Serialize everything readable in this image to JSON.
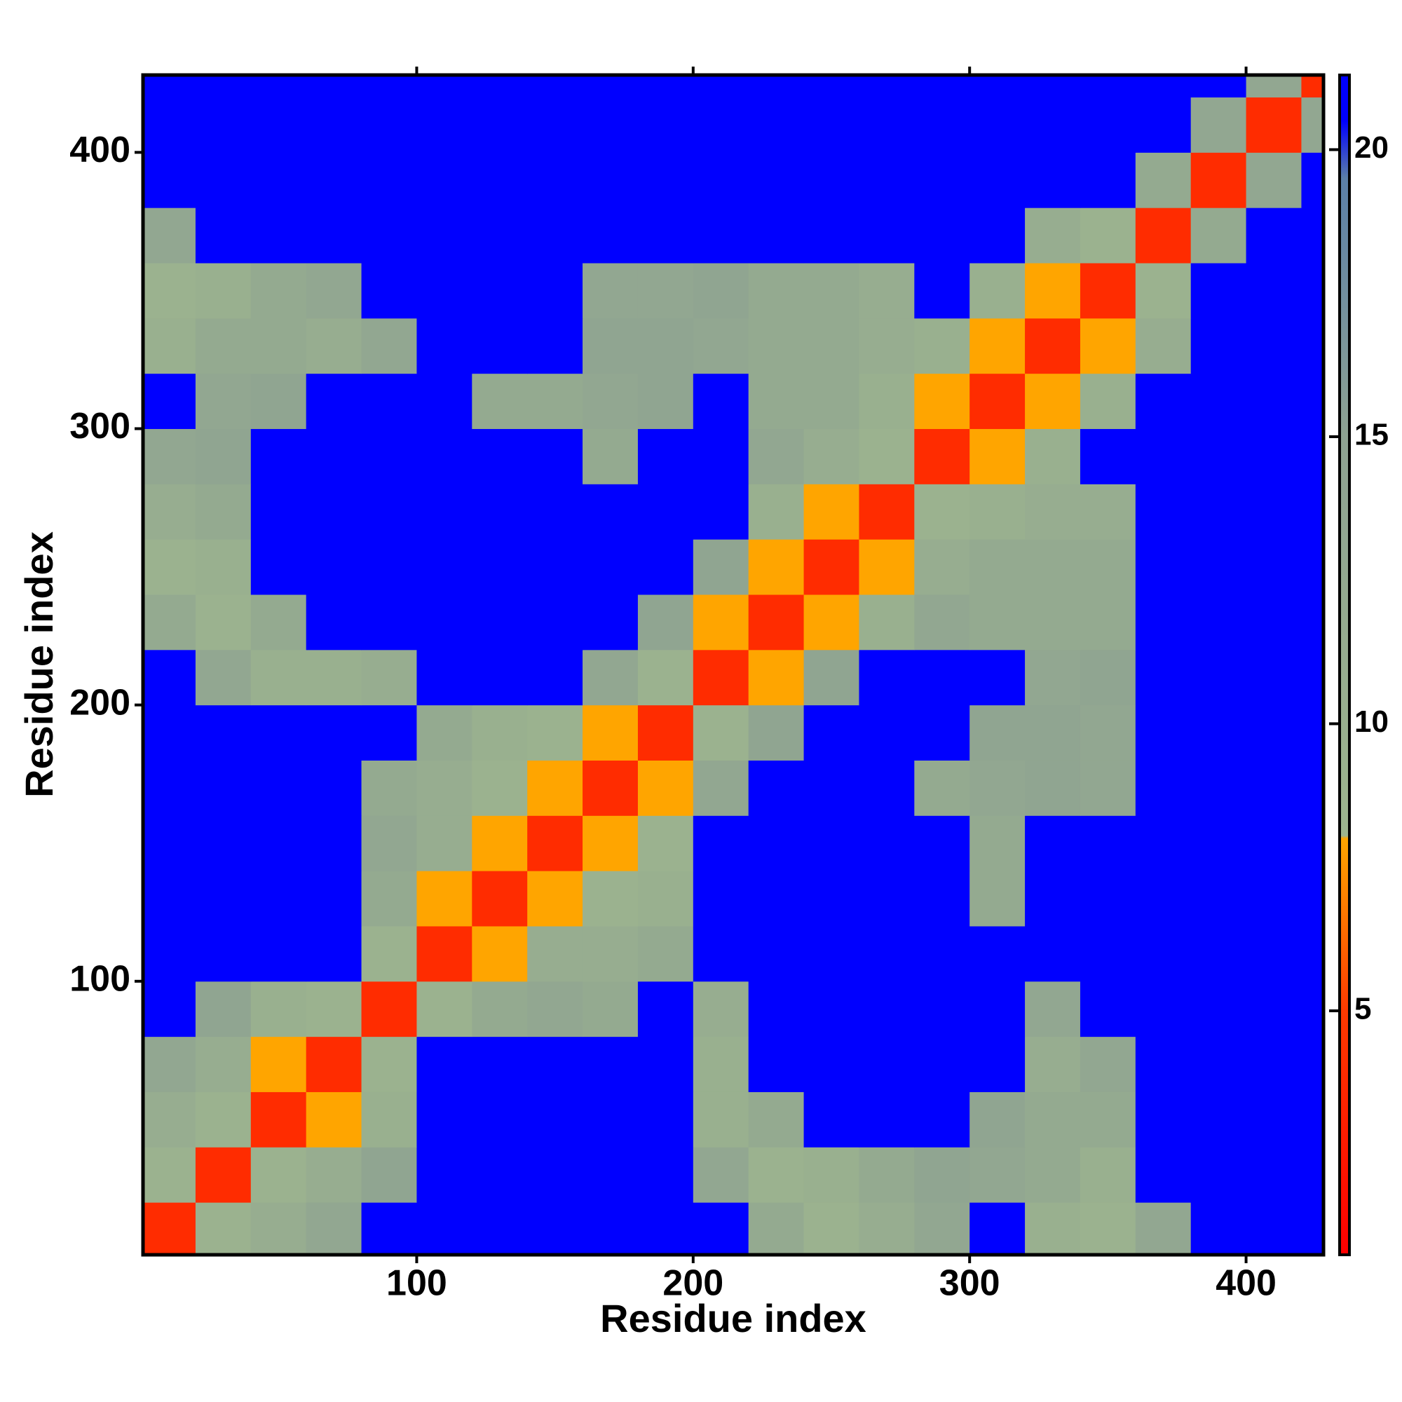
{
  "chart_data": {
    "type": "heatmap",
    "xlabel": "Residue index",
    "ylabel": "Residue index",
    "xlim": [
      1,
      428
    ],
    "ylim": [
      1,
      428
    ],
    "xticks": [
      100,
      200,
      300,
      400
    ],
    "yticks": [
      100,
      200,
      300,
      400
    ],
    "x_bins": [
      0,
      20,
      40,
      60,
      80,
      100,
      120,
      140,
      160,
      180,
      200,
      220,
      240,
      260,
      280,
      300,
      320,
      340,
      360,
      380,
      400,
      420,
      440
    ],
    "y_bins": [
      0,
      20,
      40,
      60,
      80,
      100,
      120,
      140,
      160,
      180,
      200,
      220,
      240,
      260,
      280,
      300,
      320,
      340,
      360,
      380,
      400,
      420,
      440
    ],
    "z": [
      [
        4,
        9,
        11,
        13,
        21,
        21,
        21,
        21,
        21,
        21,
        21,
        12,
        9,
        11,
        13,
        21,
        10,
        9,
        13,
        21,
        21,
        21
      ],
      [
        9,
        4,
        9,
        11,
        14,
        21,
        21,
        21,
        21,
        21,
        13,
        9,
        10,
        12,
        14,
        13,
        12,
        10,
        21,
        21,
        21,
        21
      ],
      [
        11,
        9,
        4,
        8,
        10,
        21,
        21,
        21,
        21,
        21,
        10,
        12,
        21,
        21,
        21,
        14,
        12,
        12,
        21,
        21,
        21,
        21
      ],
      [
        13,
        11,
        8,
        4,
        9,
        21,
        21,
        21,
        21,
        21,
        10,
        21,
        21,
        21,
        21,
        21,
        11,
        13,
        21,
        21,
        21,
        21
      ],
      [
        21,
        14,
        10,
        9,
        4,
        9,
        12,
        13,
        12,
        21,
        11,
        21,
        21,
        21,
        21,
        21,
        13,
        21,
        21,
        21,
        21,
        21
      ],
      [
        21,
        21,
        21,
        21,
        9,
        4,
        8,
        11,
        11,
        12,
        21,
        21,
        21,
        21,
        21,
        21,
        21,
        21,
        21,
        21,
        21,
        21
      ],
      [
        21,
        21,
        21,
        21,
        12,
        8,
        4,
        8,
        9,
        10,
        21,
        21,
        21,
        21,
        21,
        12,
        21,
        21,
        21,
        21,
        21,
        21
      ],
      [
        21,
        21,
        21,
        21,
        13,
        11,
        8,
        4,
        8,
        9,
        21,
        21,
        21,
        21,
        21,
        12,
        21,
        21,
        21,
        21,
        21,
        21
      ],
      [
        21,
        21,
        21,
        21,
        12,
        11,
        9,
        8,
        4,
        8,
        13,
        21,
        21,
        21,
        12,
        13,
        14,
        13,
        21,
        21,
        21,
        21
      ],
      [
        21,
        21,
        21,
        21,
        21,
        12,
        10,
        9,
        8,
        4,
        9,
        14,
        21,
        21,
        21,
        14,
        14,
        13,
        21,
        21,
        21,
        21
      ],
      [
        21,
        13,
        10,
        10,
        11,
        21,
        21,
        21,
        13,
        9,
        4,
        8,
        14,
        21,
        21,
        21,
        13,
        14,
        21,
        21,
        21,
        21
      ],
      [
        12,
        9,
        12,
        21,
        21,
        21,
        21,
        21,
        21,
        14,
        8,
        4,
        8,
        10,
        13,
        12,
        12,
        12,
        21,
        21,
        21,
        21
      ],
      [
        9,
        10,
        21,
        21,
        21,
        21,
        21,
        21,
        21,
        21,
        14,
        8,
        4,
        8,
        11,
        12,
        12,
        12,
        21,
        21,
        21,
        21
      ],
      [
        11,
        12,
        21,
        21,
        21,
        21,
        21,
        21,
        21,
        21,
        21,
        10,
        8,
        4,
        9,
        10,
        11,
        11,
        21,
        21,
        21,
        21
      ],
      [
        13,
        14,
        21,
        21,
        21,
        21,
        21,
        21,
        12,
        21,
        21,
        13,
        11,
        9,
        4,
        8,
        10,
        21,
        21,
        21,
        21,
        21
      ],
      [
        21,
        13,
        14,
        21,
        21,
        21,
        12,
        12,
        13,
        14,
        21,
        12,
        12,
        10,
        8,
        4,
        8,
        10,
        21,
        21,
        21,
        21
      ],
      [
        10,
        12,
        12,
        11,
        13,
        21,
        21,
        21,
        14,
        14,
        13,
        12,
        12,
        11,
        10,
        8,
        4,
        8,
        11,
        21,
        21,
        21
      ],
      [
        9,
        10,
        12,
        13,
        21,
        21,
        21,
        21,
        13,
        13,
        14,
        12,
        12,
        11,
        21,
        10,
        8,
        4,
        9,
        21,
        21,
        21
      ],
      [
        13,
        21,
        21,
        21,
        21,
        21,
        21,
        21,
        21,
        21,
        21,
        21,
        21,
        21,
        21,
        21,
        11,
        9,
        4,
        12,
        21,
        21
      ],
      [
        21,
        21,
        21,
        21,
        21,
        21,
        21,
        21,
        21,
        21,
        21,
        21,
        21,
        21,
        21,
        21,
        21,
        21,
        12,
        4,
        13,
        21
      ],
      [
        21,
        21,
        21,
        21,
        21,
        21,
        21,
        21,
        21,
        21,
        21,
        21,
        21,
        21,
        21,
        21,
        21,
        21,
        21,
        13,
        4,
        13
      ],
      [
        21,
        21,
        21,
        21,
        21,
        21,
        21,
        21,
        21,
        21,
        21,
        21,
        21,
        21,
        21,
        21,
        21,
        21,
        21,
        21,
        13,
        4
      ]
    ],
    "colorbar": {
      "lim": [
        0.75,
        21.3
      ],
      "ticks": [
        5,
        10,
        15,
        20
      ],
      "colorscale": [
        [
          0.75,
          "#ff0000"
        ],
        [
          5,
          "#ff3a00"
        ],
        [
          8,
          "#ffa500"
        ],
        [
          8.05,
          "#9db58e"
        ],
        [
          15,
          "#8ea292"
        ],
        [
          19.5,
          "#5b7fa8"
        ],
        [
          20.5,
          "#0000ff"
        ],
        [
          21.3,
          "#0000ff"
        ]
      ]
    }
  }
}
